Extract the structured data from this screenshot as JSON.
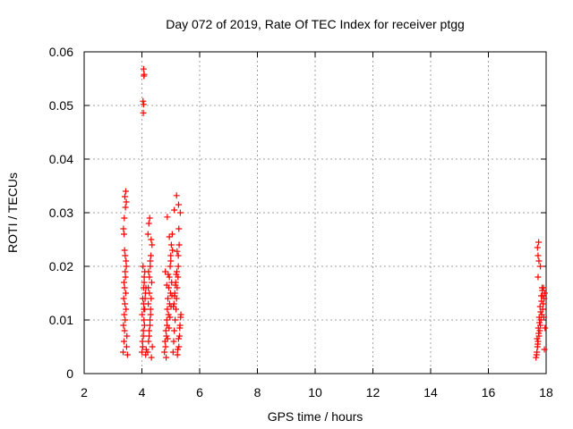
{
  "chart_data": {
    "type": "scatter",
    "title": "Day 072 of 2019, Rate Of TEC Index for receiver ptgg",
    "xlabel": "GPS time / hours",
    "ylabel": "ROTI / TECUs",
    "xlim": [
      2,
      18
    ],
    "ylim": [
      0,
      0.06
    ],
    "xticks": [
      "2",
      "4",
      "6",
      "8",
      "10",
      "12",
      "14",
      "16",
      "18"
    ],
    "yticks": [
      "0",
      "0.01",
      "0.02",
      "0.03",
      "0.04",
      "0.05",
      "0.06"
    ],
    "grid": true,
    "marker": "plus",
    "color": "#ff0000",
    "series": [
      {
        "name": "ROTI",
        "x": [
          3.35,
          3.38,
          3.4,
          3.42,
          3.45,
          3.37,
          3.4,
          3.43,
          3.46,
          3.48,
          3.36,
          3.39,
          3.41,
          3.44,
          3.47,
          3.5,
          3.38,
          3.42,
          3.45,
          3.4,
          3.36,
          3.39,
          3.43,
          3.46,
          3.41,
          3.44,
          3.38,
          3.42,
          4.0,
          4.02,
          4.05,
          4.07,
          4.1,
          4.03,
          4.06,
          4.08,
          4.04,
          4.09,
          4.01,
          4.06,
          4.12,
          4.15,
          4.05,
          4.08,
          4.1,
          4.13,
          4.03,
          4.07,
          4.11,
          4.14,
          4.05,
          4.06,
          4.07,
          4.08,
          4.06,
          4.04,
          4.2,
          4.23,
          4.25,
          4.28,
          4.3,
          4.32,
          4.22,
          4.26,
          4.29,
          4.31,
          4.35,
          4.21,
          4.24,
          4.27,
          4.33,
          4.36,
          4.25,
          4.28,
          4.3,
          4.22,
          4.26,
          4.34,
          4.23,
          4.29,
          4.32,
          4.78,
          4.8,
          4.83,
          4.86,
          4.88,
          4.9,
          4.93,
          4.95,
          4.98,
          5.0,
          5.02,
          5.05,
          4.82,
          4.85,
          4.87,
          4.92,
          4.96,
          4.99,
          5.03,
          4.81,
          4.84,
          4.89,
          4.94,
          4.97,
          5.01,
          5.04,
          4.86,
          4.91,
          5.0,
          5.06,
          4.88,
          4.95,
          5.08,
          5.1,
          5.12,
          5.15,
          5.18,
          5.2,
          5.22,
          5.25,
          5.28,
          5.3,
          5.32,
          5.35,
          5.11,
          5.14,
          5.17,
          5.21,
          5.24,
          5.27,
          5.31,
          5.34,
          5.09,
          5.13,
          5.16,
          5.19,
          5.23,
          5.26,
          5.29,
          5.33,
          5.12,
          5.2,
          5.27,
          5.22,
          5.28,
          5.26,
          17.65,
          17.68,
          17.7,
          17.72,
          17.75,
          17.78,
          17.8,
          17.82,
          17.85,
          17.88,
          17.9,
          17.93,
          17.95,
          17.67,
          17.71,
          17.74,
          17.77,
          17.81,
          17.84,
          17.87,
          17.91,
          17.94,
          17.69,
          17.73,
          17.76,
          17.79,
          17.83,
          17.86,
          17.92,
          17.96,
          17.72,
          17.8,
          17.88,
          17.75,
          17.7,
          17.74,
          17.72
        ],
        "y": [
          0.004,
          0.006,
          0.008,
          0.01,
          0.012,
          0.014,
          0.016,
          0.018,
          0.02,
          0.007,
          0.009,
          0.011,
          0.013,
          0.015,
          0.005,
          0.0035,
          0.017,
          0.019,
          0.021,
          0.023,
          0.027,
          0.029,
          0.031,
          0.032,
          0.033,
          0.034,
          0.026,
          0.022,
          0.004,
          0.006,
          0.008,
          0.01,
          0.012,
          0.014,
          0.016,
          0.018,
          0.02,
          0.009,
          0.011,
          0.013,
          0.015,
          0.0045,
          0.007,
          0.017,
          0.019,
          0.0035,
          0.005,
          0.012,
          0.014,
          0.016,
          0.0486,
          0.0502,
          0.0555,
          0.0558,
          0.0568,
          0.0508,
          0.004,
          0.006,
          0.008,
          0.01,
          0.012,
          0.014,
          0.016,
          0.018,
          0.02,
          0.022,
          0.024,
          0.026,
          0.028,
          0.029,
          0.003,
          0.005,
          0.007,
          0.009,
          0.011,
          0.013,
          0.015,
          0.017,
          0.019,
          0.021,
          0.025,
          0.004,
          0.006,
          0.008,
          0.01,
          0.012,
          0.014,
          0.016,
          0.018,
          0.02,
          0.022,
          0.024,
          0.026,
          0.005,
          0.007,
          0.009,
          0.011,
          0.013,
          0.015,
          0.017,
          0.019,
          0.003,
          0.0065,
          0.0085,
          0.0105,
          0.0125,
          0.0145,
          0.0165,
          0.0185,
          0.021,
          0.023,
          0.0292,
          0.0255,
          0.004,
          0.006,
          0.008,
          0.01,
          0.012,
          0.014,
          0.016,
          0.018,
          0.005,
          0.007,
          0.009,
          0.011,
          0.013,
          0.015,
          0.017,
          0.019,
          0.0045,
          0.0065,
          0.0085,
          0.0105,
          0.0125,
          0.0145,
          0.0165,
          0.0185,
          0.0035,
          0.022,
          0.024,
          0.03,
          0.0305,
          0.0332,
          0.0315,
          0.0228,
          0.027,
          0.02,
          0.003,
          0.004,
          0.005,
          0.006,
          0.007,
          0.008,
          0.009,
          0.01,
          0.011,
          0.012,
          0.013,
          0.014,
          0.015,
          0.0035,
          0.0055,
          0.0075,
          0.0095,
          0.0115,
          0.0135,
          0.0155,
          0.016,
          0.0045,
          0.0065,
          0.0085,
          0.0105,
          0.0125,
          0.0145,
          0.016,
          0.0105,
          0.0085,
          0.018,
          0.02,
          0.0145,
          0.021,
          0.0235,
          0.0245,
          0.022
        ]
      }
    ]
  }
}
